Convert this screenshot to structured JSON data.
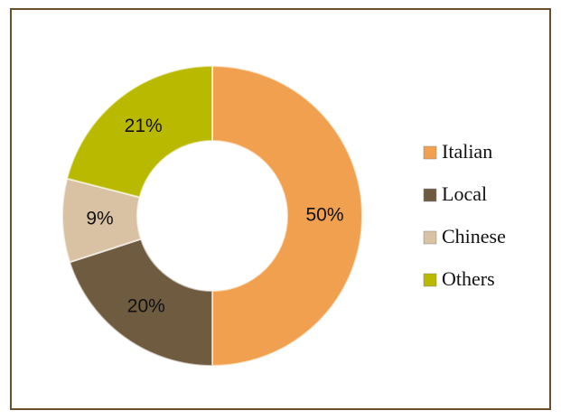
{
  "chart_data": {
    "type": "donut",
    "categories": [
      "Italian",
      "Local",
      "Chinese",
      "Others"
    ],
    "values": [
      50,
      20,
      9,
      21
    ],
    "value_labels": [
      "50%",
      "20%",
      "9%",
      "21%"
    ],
    "colors": [
      "#f0a04e",
      "#6e5b40",
      "#d9c2a3",
      "#b9b900"
    ],
    "legend": "right"
  }
}
